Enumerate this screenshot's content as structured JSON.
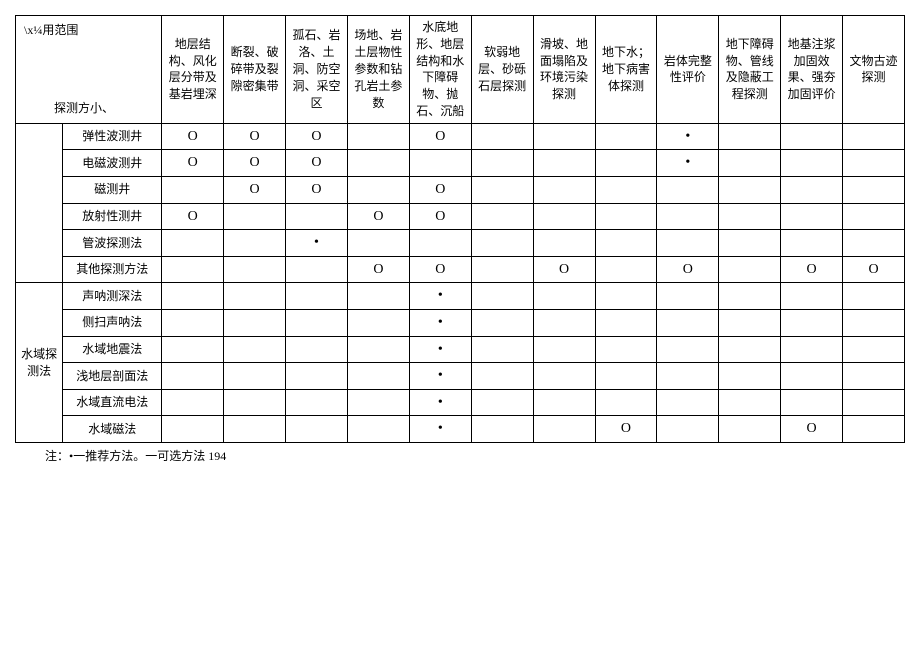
{
  "header": {
    "diag_top": "\\x¼用范围",
    "diag_bottom": "探测方小、",
    "columns": [
      "地层结构、风化层分带及基岩埋深",
      "断裂、破碎带及裂隙密集带",
      "孤石、岩洛、土洞、防空洞、采空区",
      "场地、岩土层物性参数和钻孔岩土参数",
      "水底地形、地层结构和水下障碍物、抛石、沉船",
      "软弱地层、砂砾石层探测",
      "滑坡、地面塌陷及环境污染探测",
      "地下水；地下病害体探测",
      "岩体完整性评价",
      "地下障碍物、管线及隐蔽工程探测",
      "地基注浆加固效果、强夯加固评价",
      "文物古迹探测"
    ]
  },
  "groups": [
    {
      "label": "",
      "rows": [
        {
          "name": "弹性波测井",
          "cells": [
            "O",
            "O",
            "O",
            "",
            "O",
            "",
            "",
            "",
            "•",
            "",
            "",
            ""
          ]
        },
        {
          "name": "电磁波测井",
          "cells": [
            "O",
            "O",
            "O",
            "",
            "",
            "",
            "",
            "",
            "•",
            "",
            "",
            ""
          ]
        },
        {
          "name": "磁测井",
          "cells": [
            "",
            "O",
            "O",
            "",
            "O",
            "",
            "",
            "",
            "",
            "",
            "",
            ""
          ]
        },
        {
          "name": "放射性测井",
          "cells": [
            "O",
            "",
            "",
            "O",
            "O",
            "",
            "",
            "",
            "",
            "",
            "",
            ""
          ]
        },
        {
          "name": "管波探测法",
          "cells": [
            "",
            "",
            "•",
            "",
            "",
            "",
            "",
            "",
            "",
            "",
            "",
            ""
          ]
        },
        {
          "name": "其他探测方法",
          "cells": [
            "",
            "",
            "",
            "O",
            "O",
            "",
            "O",
            "",
            "O",
            "",
            "O",
            "O"
          ]
        }
      ]
    },
    {
      "label": "水域探测法",
      "rows": [
        {
          "name": "声呐测深法",
          "cells": [
            "",
            "",
            "",
            "",
            "•",
            "",
            "",
            "",
            "",
            "",
            "",
            ""
          ]
        },
        {
          "name": "侧扫声呐法",
          "cells": [
            "",
            "",
            "",
            "",
            "•",
            "",
            "",
            "",
            "",
            "",
            "",
            ""
          ]
        },
        {
          "name": "水域地震法",
          "cells": [
            "",
            "",
            "",
            "",
            "•",
            "",
            "",
            "",
            "",
            "",
            "",
            ""
          ]
        },
        {
          "name": "浅地层剖面法",
          "cells": [
            "",
            "",
            "",
            "",
            "•",
            "",
            "",
            "",
            "",
            "",
            "",
            ""
          ]
        },
        {
          "name": "水域直流电法",
          "cells": [
            "",
            "",
            "",
            "",
            "•",
            "",
            "",
            "",
            "",
            "",
            "",
            ""
          ]
        },
        {
          "name": "水域磁法",
          "cells": [
            "",
            "",
            "",
            "",
            "•",
            "",
            "",
            "O",
            "",
            "",
            "O",
            ""
          ]
        }
      ]
    }
  ],
  "note": "注：•一推荐方法。一可选方法 194",
  "style": {
    "font_family": "SimSun",
    "border_color": "#000000",
    "background": "#ffffff",
    "header_fontsize": 12,
    "body_fontsize": 12,
    "marker_recommend": "•",
    "marker_optional": "O"
  }
}
